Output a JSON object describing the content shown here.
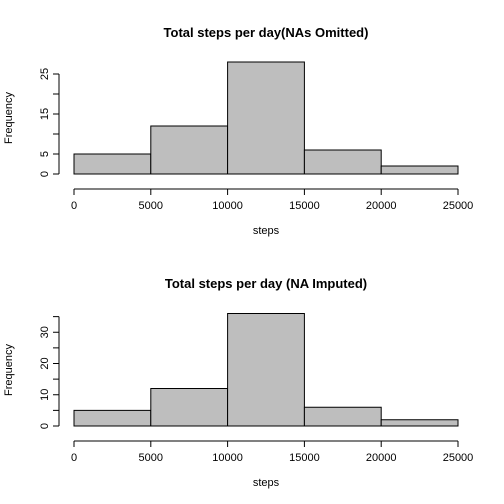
{
  "colors": {
    "bar_fill": "#bebebe",
    "bar_stroke": "#000000",
    "background": "#ffffff"
  },
  "chart_data": [
    {
      "type": "bar",
      "title": "Total steps per day(NAs Omitted)",
      "xlabel": "steps",
      "ylabel": "Frequency",
      "bins": [
        {
          "from": 0,
          "to": 5000,
          "count": 5
        },
        {
          "from": 5000,
          "to": 10000,
          "count": 12
        },
        {
          "from": 10000,
          "to": 15000,
          "count": 28
        },
        {
          "from": 15000,
          "to": 20000,
          "count": 6
        },
        {
          "from": 20000,
          "to": 25000,
          "count": 2
        }
      ],
      "xlim": [
        0,
        25000
      ],
      "ylim": [
        0,
        28
      ],
      "x_ticks": [
        0,
        5000,
        10000,
        15000,
        20000,
        25000
      ],
      "y_ticks": [
        0,
        5,
        10,
        15,
        20,
        25
      ],
      "y_tick_labels": [
        "0",
        "5",
        "",
        "15",
        "",
        "25"
      ],
      "grid": false,
      "legend": "none"
    },
    {
      "type": "bar",
      "title": "Total steps per day (NA Imputed)",
      "xlabel": "steps",
      "ylabel": "Frequency",
      "bins": [
        {
          "from": 0,
          "to": 5000,
          "count": 5
        },
        {
          "from": 5000,
          "to": 10000,
          "count": 12
        },
        {
          "from": 10000,
          "to": 15000,
          "count": 36
        },
        {
          "from": 15000,
          "to": 20000,
          "count": 6
        },
        {
          "from": 20000,
          "to": 25000,
          "count": 2
        }
      ],
      "xlim": [
        0,
        25000
      ],
      "ylim": [
        0,
        36
      ],
      "x_ticks": [
        0,
        5000,
        10000,
        15000,
        20000,
        25000
      ],
      "y_ticks": [
        0,
        5,
        10,
        15,
        20,
        25,
        30,
        35
      ],
      "y_tick_labels": [
        "0",
        "",
        "10",
        "",
        "20",
        "",
        "30",
        ""
      ],
      "grid": false,
      "legend": "none"
    }
  ]
}
